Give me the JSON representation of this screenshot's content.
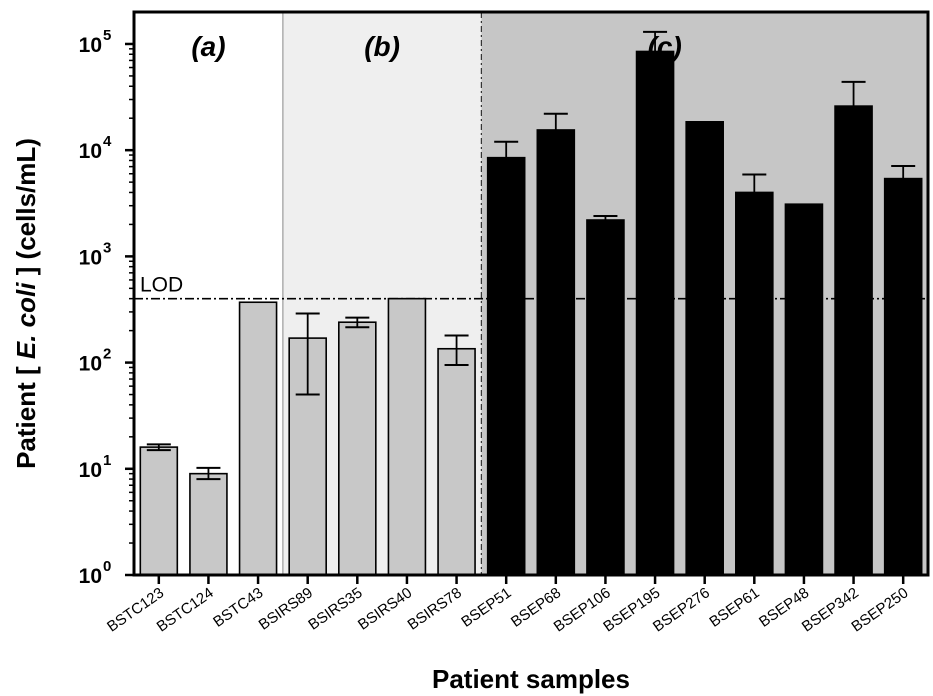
{
  "chart_data": {
    "type": "bar",
    "title": "",
    "xlabel": "Patient samples",
    "ylabel_parts": [
      "Patient [ ",
      "E. coli",
      " ] (cells/mL)"
    ],
    "y_scale": "log",
    "ylim": [
      1,
      200000
    ],
    "yticks": [
      {
        "value": 1,
        "base": "10",
        "exp": "0"
      },
      {
        "value": 10,
        "base": "10",
        "exp": "1"
      },
      {
        "value": 100,
        "base": "10",
        "exp": "2"
      },
      {
        "value": 1000,
        "base": "10",
        "exp": "3"
      },
      {
        "value": 10000,
        "base": "10",
        "exp": "4"
      },
      {
        "value": 100000,
        "base": "10",
        "exp": "5"
      }
    ],
    "categories": [
      "BSTC123",
      "BSTC124",
      "BSTC43",
      "BSIRS89",
      "BSIRS35",
      "BSIRS40",
      "BSIRS78",
      "BSEP51",
      "BSEP68",
      "BSEP106",
      "BSEP195",
      "BSEP276",
      "BSEP61",
      "BSEP48",
      "BSEP342",
      "BSEP250"
    ],
    "values": [
      16,
      9,
      370,
      170,
      240,
      400,
      135,
      8500,
      15500,
      2200,
      85000,
      18500,
      4000,
      3100,
      26000,
      5400
    ],
    "error_upper": [
      17,
      10.2,
      null,
      290,
      265,
      null,
      180,
      12000,
      22000,
      2400,
      130000,
      null,
      5900,
      null,
      44000,
      7100
    ],
    "error_lower": [
      15,
      8,
      null,
      50,
      215,
      null,
      95,
      null,
      null,
      2000,
      null,
      null,
      null,
      null,
      null,
      null
    ],
    "bar_colors": [
      "#c8c8c8",
      "#c8c8c8",
      "#c8c8c8",
      "#c8c8c8",
      "#c8c8c8",
      "#c8c8c8",
      "#c8c8c8",
      "#000000",
      "#000000",
      "#000000",
      "#000000",
      "#000000",
      "#000000",
      "#000000",
      "#000000",
      "#000000"
    ],
    "groups": [
      {
        "label": "(a)",
        "from": 0,
        "to": 2,
        "background": "#ffffff"
      },
      {
        "label": "(b)",
        "from": 3,
        "to": 6,
        "background": "#efefef"
      },
      {
        "label": "(c)",
        "from": 7,
        "to": 15,
        "background": "#c6c6c6"
      }
    ],
    "lod": {
      "label": "LOD",
      "value": 400
    },
    "grid": false,
    "legend": "none"
  }
}
